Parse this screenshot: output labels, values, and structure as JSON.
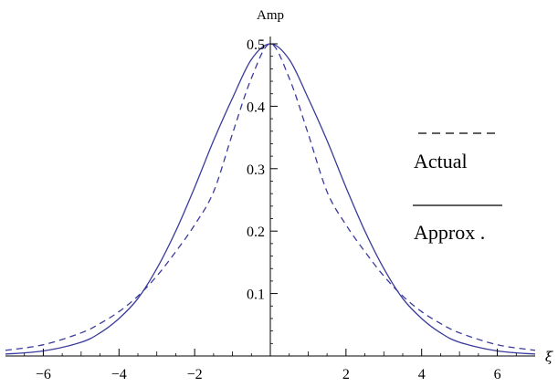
{
  "chart_data": {
    "type": "line",
    "title": "",
    "xlabel": "ξ",
    "ylabel": "Amp",
    "xlim": [
      -7,
      7
    ],
    "ylim": [
      0,
      0.5
    ],
    "x_ticks": [
      -6,
      -4,
      -2,
      2,
      4,
      6
    ],
    "y_ticks": [
      0.1,
      0.2,
      0.3,
      0.4,
      0.5
    ],
    "grid": false,
    "legend_placement": "right",
    "series": [
      {
        "name": "Actual",
        "style": "dashed",
        "color": "#3a3a9c",
        "x": [
          -7,
          -6,
          -5,
          -4.5,
          -4,
          -3.5,
          -3,
          -2.5,
          -2,
          -1.5,
          -1,
          -0.5,
          0,
          0.5,
          1,
          1.5,
          2,
          2.5,
          3,
          3.5,
          4,
          4.5,
          5,
          6,
          7
        ],
        "y": [
          0.009,
          0.018,
          0.037,
          0.052,
          0.071,
          0.096,
          0.128,
          0.167,
          0.21,
          0.263,
          0.356,
          0.445,
          0.5,
          0.445,
          0.356,
          0.263,
          0.21,
          0.167,
          0.128,
          0.096,
          0.071,
          0.052,
          0.037,
          0.018,
          0.009
        ]
      },
      {
        "name": "Approx .",
        "style": "solid",
        "color": "#3a3a9c",
        "x": [
          -7,
          -6,
          -5,
          -4.5,
          -4,
          -3.5,
          -3,
          -2.5,
          -2,
          -1.5,
          -1,
          -0.5,
          0,
          0.5,
          1,
          1.5,
          2,
          2.5,
          3,
          3.5,
          4,
          4.5,
          5,
          6,
          7
        ],
        "y": [
          0.003,
          0.008,
          0.022,
          0.037,
          0.06,
          0.092,
          0.14,
          0.2,
          0.27,
          0.345,
          0.413,
          0.475,
          0.5,
          0.475,
          0.413,
          0.345,
          0.27,
          0.2,
          0.14,
          0.092,
          0.06,
          0.037,
          0.022,
          0.008,
          0.003
        ]
      }
    ]
  }
}
